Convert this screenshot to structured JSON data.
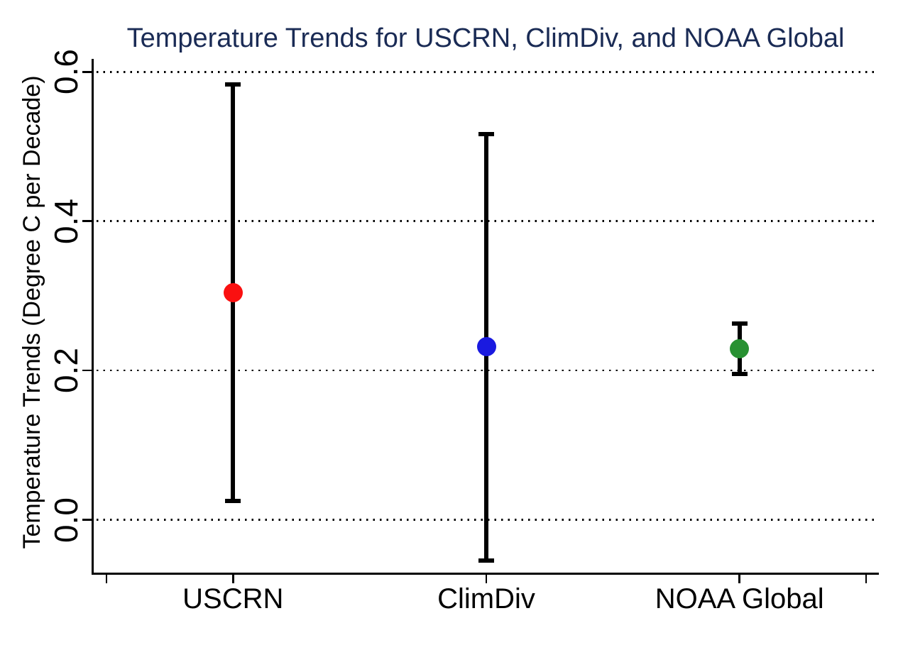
{
  "figure": {
    "background": "#ffffff",
    "title_color": "#1a2b55",
    "axis_color": "#000000"
  },
  "chart_data": {
    "type": "scatter",
    "subtype": "point_estimates_with_error_bars",
    "title": "Temperature Trends for USCRN, ClimDiv, and NOAA Global",
    "xlabel": "",
    "ylabel": "Temperature Trends (Degree C per Decade)",
    "categories": [
      "USCRN",
      "ClimDiv",
      "NOAA Global"
    ],
    "series": [
      {
        "name": "USCRN",
        "point": 0.304,
        "ci_low": 0.025,
        "ci_high": 0.583,
        "marker_color": "#fa1010"
      },
      {
        "name": "ClimDiv",
        "point": 0.232,
        "ci_low": -0.055,
        "ci_high": 0.517,
        "marker_color": "#1a1ae0"
      },
      {
        "name": "NOAA Global",
        "point": 0.229,
        "ci_low": 0.195,
        "ci_high": 0.263,
        "marker_color": "#289132"
      }
    ],
    "yticks": [
      "0.0",
      "0.2",
      "0.4",
      "0.6"
    ],
    "ytick_values": [
      0.0,
      0.2,
      0.4,
      0.6
    ],
    "ylim": [
      -0.072,
      0.618
    ],
    "grid": "horizontal_dotted",
    "legend_position": "none",
    "error_bar_color": "#000000"
  }
}
